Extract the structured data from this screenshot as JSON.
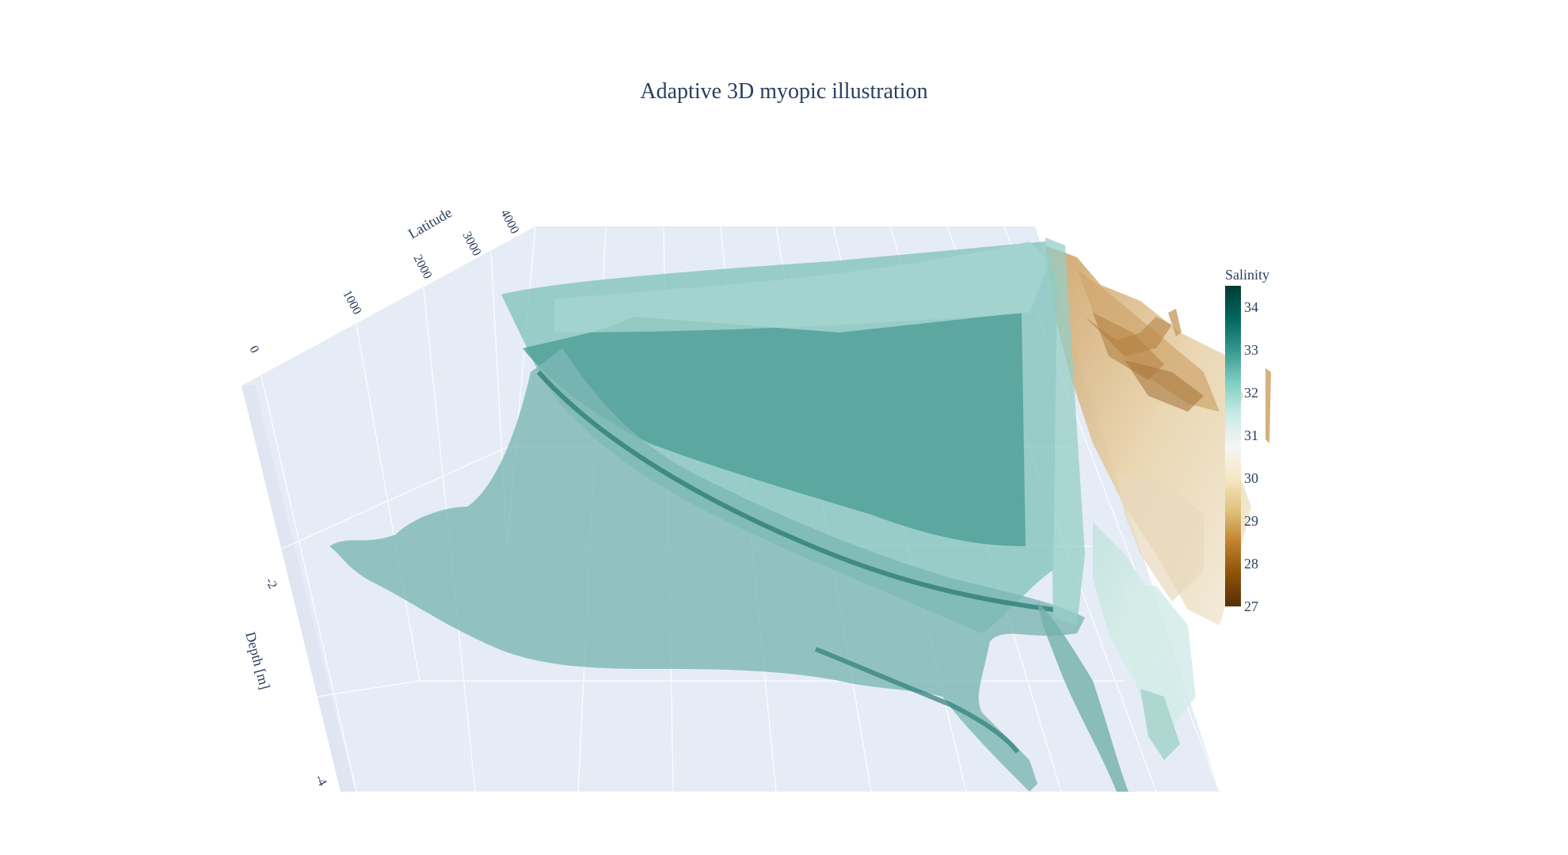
{
  "chart_data": {
    "type": "surface",
    "title": "Adaptive 3D myopic illustration",
    "axes": {
      "latitude": {
        "label": "Latitude",
        "ticks": [
          "0",
          "1000",
          "2000",
          "3000",
          "4000"
        ]
      },
      "depth": {
        "label": "Depth [m]",
        "ticks": [
          "-2",
          "-4"
        ]
      },
      "longitude": {
        "label": "",
        "ticks": []
      }
    },
    "colorbar": {
      "title": "Salinity",
      "ticks": [
        34,
        33,
        32,
        31,
        30,
        29,
        28,
        27
      ],
      "range": [
        27,
        34.5
      ],
      "colorscale": "BrBG",
      "colors": [
        "#543005",
        "#8c510a",
        "#bf812d",
        "#dfc27d",
        "#f6e8c3",
        "#f5f5f5",
        "#c7eae5",
        "#80cdc1",
        "#35978f",
        "#01665e",
        "#003c30"
      ]
    },
    "surfaces": [
      {
        "name": "",
        "salinity_range": [
          32.2,
          33.2
        ]
      },
      {
        "name": "",
        "salinity_range": [
          27.5,
          31.5
        ]
      }
    ],
    "grid": true
  }
}
